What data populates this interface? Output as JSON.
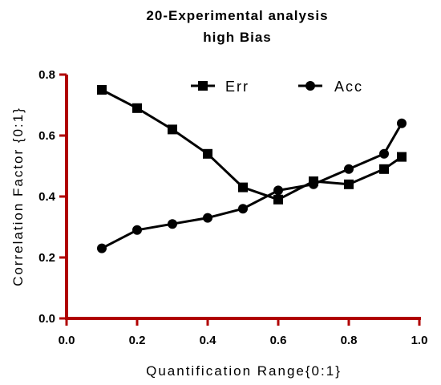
{
  "chart_data": {
    "type": "line",
    "title": [
      "20-Experimental analysis",
      "high Bias"
    ],
    "xlabel": "Quantification Range{0:1}",
    "ylabel": "Correlation Factor {0:1}",
    "xlim": [
      0.0,
      1.0
    ],
    "ylim": [
      0.0,
      0.8
    ],
    "xticks": [
      "0.0",
      "0.2",
      "0.4",
      "0.6",
      "0.8",
      "1.0"
    ],
    "yticks": [
      "0.0",
      "0.2",
      "0.4",
      "0.6",
      "0.8"
    ],
    "grid": false,
    "legend_position": "top-right",
    "axis_color": "#b00000",
    "series": [
      {
        "name": "Err",
        "marker": "square",
        "color": "#000000",
        "x": [
          0.1,
          0.2,
          0.3,
          0.4,
          0.5,
          0.6,
          0.7,
          0.8,
          0.9,
          0.95
        ],
        "y": [
          0.75,
          0.69,
          0.62,
          0.54,
          0.43,
          0.39,
          0.45,
          0.44,
          0.49,
          0.53
        ]
      },
      {
        "name": "Acc",
        "marker": "circle",
        "color": "#000000",
        "x": [
          0.1,
          0.2,
          0.3,
          0.4,
          0.5,
          0.6,
          0.7,
          0.8,
          0.9,
          0.95
        ],
        "y": [
          0.23,
          0.29,
          0.31,
          0.33,
          0.36,
          0.42,
          0.44,
          0.49,
          0.54,
          0.64
        ]
      }
    ]
  }
}
